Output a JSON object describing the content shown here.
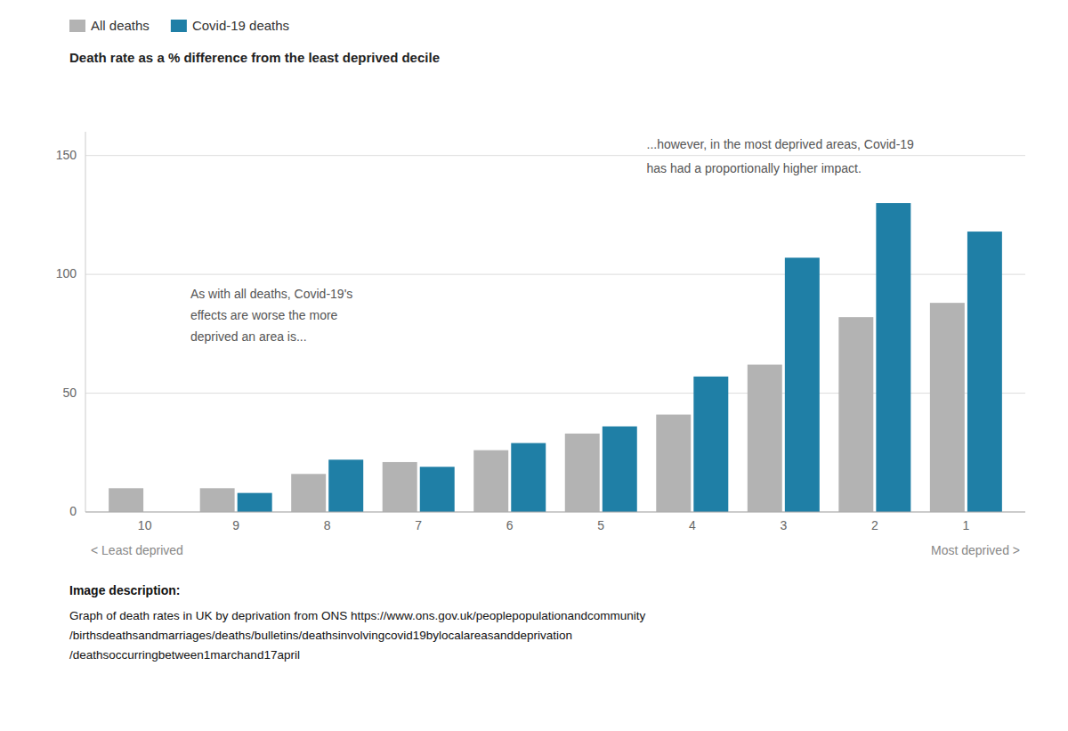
{
  "chart_data": {
    "type": "bar",
    "subtitle": "Death rate as a % difference from the least deprived decile",
    "categories": [
      "10",
      "9",
      "8",
      "7",
      "6",
      "5",
      "4",
      "3",
      "2",
      "1"
    ],
    "series": [
      {
        "name": "All deaths",
        "color": "#b3b3b3",
        "values": [
          10,
          10,
          16,
          21,
          26,
          33,
          41,
          62,
          82,
          88
        ]
      },
      {
        "name": "Covid-19 deaths",
        "color": "#1f7fa6",
        "values": [
          0,
          8,
          22,
          19,
          29,
          36,
          57,
          107,
          130,
          118
        ]
      }
    ],
    "ylim": [
      0,
      160
    ],
    "yticks": [
      0,
      50,
      100,
      150
    ],
    "grid": true,
    "legend": "upper left",
    "annotations": [
      "As with all deaths, Covid-19's\neffects are worse the more\ndeprived an area is...",
      "...however, in the most deprived areas, Covid-19",
      "has had a proportionally higher impact.",
      "< Least deprived",
      "Most deprived >",
      "Image description:",
      "Graph of death rates in UK by deprivation from ONS https://www.ons.gov.uk/peoplepopulationandcommunity\n/birthsdeathsandmarriages/deaths/bulletins/deathsinvolvingcovid19bylocalareasanddeprivation\n/deathsoccurringbetween1marchand17april"
    ]
  }
}
